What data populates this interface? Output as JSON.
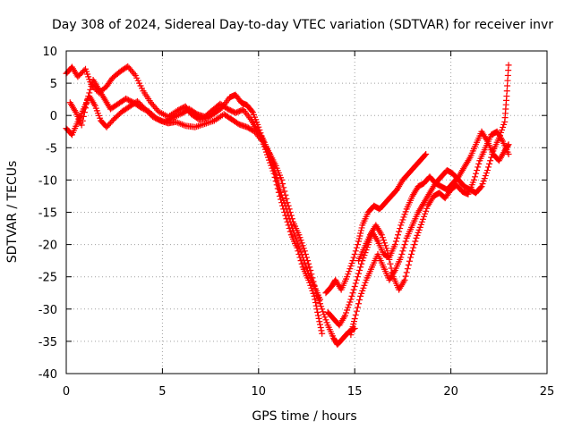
{
  "chart_data": {
    "type": "scatter",
    "title": "Day 308 of 2024, Sidereal Day-to-day VTEC variation (SDTVAR) for receiver invr",
    "xlabel": "GPS time / hours",
    "ylabel": "SDTVAR / TECUs",
    "xlim": [
      0,
      25
    ],
    "ylim": [
      -40,
      10
    ],
    "xticks": [
      0,
      5,
      10,
      15,
      20,
      25
    ],
    "yticks": [
      -40,
      -35,
      -30,
      -25,
      -20,
      -15,
      -10,
      -5,
      0,
      5,
      10
    ],
    "grid": true,
    "marker": "+",
    "color": "#ff0000",
    "series": [
      {
        "points": [
          [
            0.0,
            6.5
          ],
          [
            0.3,
            7.5
          ],
          [
            0.6,
            6.0
          ],
          [
            1.0,
            7.2
          ],
          [
            1.3,
            4.8
          ],
          [
            1.7,
            3.5
          ],
          [
            2.1,
            4.5
          ],
          [
            2.4,
            5.8
          ],
          [
            2.8,
            6.8
          ],
          [
            3.2,
            7.6
          ],
          [
            3.6,
            6.2
          ],
          [
            4.0,
            3.8
          ],
          [
            4.4,
            2.0
          ],
          [
            4.8,
            0.6
          ],
          [
            5.3,
            -0.2
          ],
          [
            5.8,
            0.8
          ],
          [
            6.2,
            1.4
          ],
          [
            6.5,
            0.2
          ],
          [
            6.9,
            -0.6
          ],
          [
            7.3,
            -0.4
          ],
          [
            7.7,
            0.3
          ],
          [
            8.1,
            1.2
          ],
          [
            8.5,
            2.8
          ],
          [
            8.8,
            3.2
          ],
          [
            9.1,
            2.0
          ],
          [
            9.4,
            1.6
          ],
          [
            9.7,
            0.5
          ],
          [
            10.0,
            -1.8
          ],
          [
            10.3,
            -4.5
          ],
          [
            10.6,
            -6.0
          ],
          [
            10.9,
            -7.8
          ],
          [
            11.2,
            -10.0
          ],
          [
            11.5,
            -13.5
          ],
          [
            11.8,
            -16.5
          ],
          [
            12.1,
            -18.5
          ],
          [
            12.4,
            -21.0
          ],
          [
            12.7,
            -24.0
          ],
          [
            13.0,
            -27.5
          ],
          [
            13.3,
            -30.0
          ],
          [
            13.6,
            -32.5
          ],
          [
            13.9,
            -34.5
          ],
          [
            14.1,
            -35.5
          ],
          [
            14.4,
            -34.5
          ],
          [
            14.7,
            -33.5
          ],
          [
            15.0,
            -33.0
          ]
        ]
      },
      {
        "points": [
          [
            0.0,
            -2.0
          ],
          [
            0.3,
            -3.0
          ],
          [
            0.6,
            -1.0
          ],
          [
            0.9,
            1.0
          ],
          [
            1.2,
            3.0
          ],
          [
            1.5,
            1.5
          ],
          [
            1.8,
            -0.8
          ],
          [
            2.1,
            -1.8
          ],
          [
            2.5,
            -0.5
          ],
          [
            2.9,
            0.6
          ],
          [
            3.3,
            1.4
          ],
          [
            3.7,
            2.2
          ],
          [
            4.1,
            1.0
          ],
          [
            4.5,
            -0.2
          ],
          [
            4.9,
            -0.8
          ],
          [
            5.3,
            -1.2
          ],
          [
            5.7,
            -1.0
          ],
          [
            6.2,
            -1.6
          ],
          [
            6.7,
            -1.8
          ],
          [
            7.2,
            -1.3
          ],
          [
            7.7,
            -0.8
          ],
          [
            8.2,
            0.2
          ],
          [
            8.6,
            -0.6
          ],
          [
            9.0,
            -1.4
          ],
          [
            9.4,
            -1.8
          ],
          [
            9.8,
            -2.5
          ],
          [
            10.2,
            -4.0
          ],
          [
            10.5,
            -6.5
          ],
          [
            10.8,
            -9.0
          ],
          [
            11.1,
            -12.5
          ],
          [
            11.4,
            -15.5
          ],
          [
            11.7,
            -18.5
          ],
          [
            12.0,
            -20.5
          ],
          [
            12.3,
            -23.5
          ],
          [
            12.6,
            -25.5
          ],
          [
            12.9,
            -28.0
          ],
          [
            13.1,
            -31.0
          ],
          [
            13.3,
            -33.8
          ]
        ]
      },
      {
        "points": [
          [
            0.2,
            2.0
          ],
          [
            0.5,
            0.5
          ],
          [
            0.8,
            -1.5
          ],
          [
            1.1,
            2.5
          ],
          [
            1.4,
            5.5
          ],
          [
            1.7,
            4.0
          ],
          [
            2.0,
            2.5
          ],
          [
            2.3,
            1.0
          ],
          [
            2.7,
            1.8
          ],
          [
            3.1,
            2.6
          ],
          [
            3.5,
            2.0
          ],
          [
            3.9,
            1.2
          ],
          [
            4.3,
            0.6
          ],
          [
            4.7,
            -0.5
          ],
          [
            5.1,
            -1.0
          ],
          [
            5.5,
            -0.4
          ],
          [
            6.0,
            0.3
          ],
          [
            6.4,
            1.0
          ],
          [
            6.8,
            0.2
          ],
          [
            7.2,
            -0.2
          ],
          [
            7.6,
            0.8
          ],
          [
            8.0,
            1.8
          ],
          [
            8.4,
            1.0
          ],
          [
            8.8,
            0.4
          ],
          [
            9.2,
            0.9
          ],
          [
            9.6,
            -0.6
          ],
          [
            9.9,
            -2.2
          ],
          [
            10.2,
            -3.5
          ],
          [
            10.5,
            -5.5
          ],
          [
            10.8,
            -8.0
          ],
          [
            11.1,
            -11.5
          ],
          [
            11.4,
            -14.0
          ],
          [
            11.7,
            -17.0
          ],
          [
            12.0,
            -19.5
          ],
          [
            12.3,
            -22.0
          ],
          [
            12.6,
            -24.5
          ],
          [
            12.9,
            -26.5
          ],
          [
            13.2,
            -28.5
          ]
        ]
      },
      {
        "points": [
          [
            13.5,
            -27.5
          ],
          [
            13.8,
            -26.5
          ],
          [
            14.0,
            -25.5
          ],
          [
            14.3,
            -27.0
          ],
          [
            14.6,
            -25.0
          ],
          [
            14.9,
            -22.5
          ],
          [
            15.2,
            -19.5
          ],
          [
            15.4,
            -17.0
          ],
          [
            15.7,
            -15.0
          ],
          [
            16.0,
            -14.0
          ],
          [
            16.3,
            -14.5
          ],
          [
            16.6,
            -13.5
          ],
          [
            16.9,
            -12.5
          ],
          [
            17.2,
            -11.5
          ],
          [
            17.5,
            -10.0
          ],
          [
            17.8,
            -9.0
          ],
          [
            18.1,
            -8.0
          ],
          [
            18.4,
            -7.0
          ],
          [
            18.7,
            -6.0
          ]
        ]
      },
      {
        "points": [
          [
            13.6,
            -30.5
          ],
          [
            13.9,
            -31.5
          ],
          [
            14.2,
            -32.5
          ],
          [
            14.5,
            -31.0
          ],
          [
            14.8,
            -28.5
          ],
          [
            15.1,
            -25.5
          ],
          [
            15.4,
            -22.5
          ],
          [
            15.7,
            -20.0
          ],
          [
            15.9,
            -18.0
          ],
          [
            16.2,
            -19.5
          ],
          [
            16.5,
            -21.5
          ],
          [
            16.8,
            -22.0
          ],
          [
            17.1,
            -20.0
          ],
          [
            17.4,
            -17.0
          ],
          [
            17.7,
            -14.5
          ],
          [
            18.0,
            -12.5
          ],
          [
            18.3,
            -11.0
          ],
          [
            18.6,
            -10.5
          ],
          [
            18.9,
            -9.5
          ],
          [
            19.2,
            -10.5
          ],
          [
            19.5,
            -11.0
          ],
          [
            19.8,
            -11.5
          ],
          [
            20.1,
            -10.5
          ],
          [
            20.4,
            -9.5
          ],
          [
            20.7,
            -8.0
          ],
          [
            21.0,
            -6.5
          ],
          [
            21.3,
            -4.5
          ],
          [
            21.6,
            -2.5
          ],
          [
            21.9,
            -4.0
          ],
          [
            22.2,
            -6.0
          ],
          [
            22.5,
            -7.0
          ],
          [
            22.8,
            -5.5
          ],
          [
            23.0,
            -4.5
          ]
        ]
      },
      {
        "points": [
          [
            14.8,
            -34.0
          ],
          [
            15.0,
            -31.5
          ],
          [
            15.3,
            -28.0
          ],
          [
            15.6,
            -25.5
          ],
          [
            15.9,
            -23.5
          ],
          [
            16.2,
            -21.5
          ],
          [
            16.5,
            -23.5
          ],
          [
            16.8,
            -25.5
          ],
          [
            17.1,
            -24.0
          ],
          [
            17.4,
            -22.0
          ],
          [
            17.7,
            -19.0
          ],
          [
            18.0,
            -17.0
          ],
          [
            18.3,
            -15.0
          ],
          [
            18.6,
            -13.5
          ],
          [
            18.9,
            -12.0
          ],
          [
            19.2,
            -10.5
          ],
          [
            19.5,
            -9.5
          ],
          [
            19.8,
            -8.5
          ],
          [
            20.1,
            -9.0
          ],
          [
            20.4,
            -10.0
          ],
          [
            20.7,
            -11.0
          ],
          [
            21.0,
            -11.5
          ],
          [
            21.3,
            -12.0
          ],
          [
            21.6,
            -11.0
          ],
          [
            21.9,
            -8.5
          ],
          [
            22.2,
            -5.5
          ],
          [
            22.5,
            -3.5
          ],
          [
            22.8,
            -1.0
          ],
          [
            22.9,
            3.0
          ],
          [
            23.0,
            7.8
          ]
        ]
      },
      {
        "points": [
          [
            15.2,
            -22.5
          ],
          [
            15.5,
            -20.5
          ],
          [
            15.8,
            -18.5
          ],
          [
            16.1,
            -17.0
          ],
          [
            16.4,
            -18.5
          ],
          [
            16.7,
            -21.0
          ],
          [
            17.0,
            -25.0
          ],
          [
            17.3,
            -27.0
          ],
          [
            17.6,
            -25.5
          ],
          [
            17.9,
            -22.0
          ],
          [
            18.2,
            -19.0
          ],
          [
            18.5,
            -16.5
          ],
          [
            18.8,
            -14.0
          ],
          [
            19.1,
            -12.5
          ],
          [
            19.4,
            -12.0
          ],
          [
            19.7,
            -12.8
          ],
          [
            20.0,
            -11.5
          ],
          [
            20.3,
            -10.8
          ],
          [
            20.6,
            -11.8
          ],
          [
            20.9,
            -12.2
          ],
          [
            21.2,
            -10.0
          ],
          [
            21.5,
            -7.0
          ],
          [
            21.8,
            -5.0
          ],
          [
            22.1,
            -3.0
          ],
          [
            22.4,
            -2.5
          ],
          [
            22.7,
            -4.0
          ],
          [
            23.0,
            -6.0
          ]
        ]
      }
    ]
  }
}
